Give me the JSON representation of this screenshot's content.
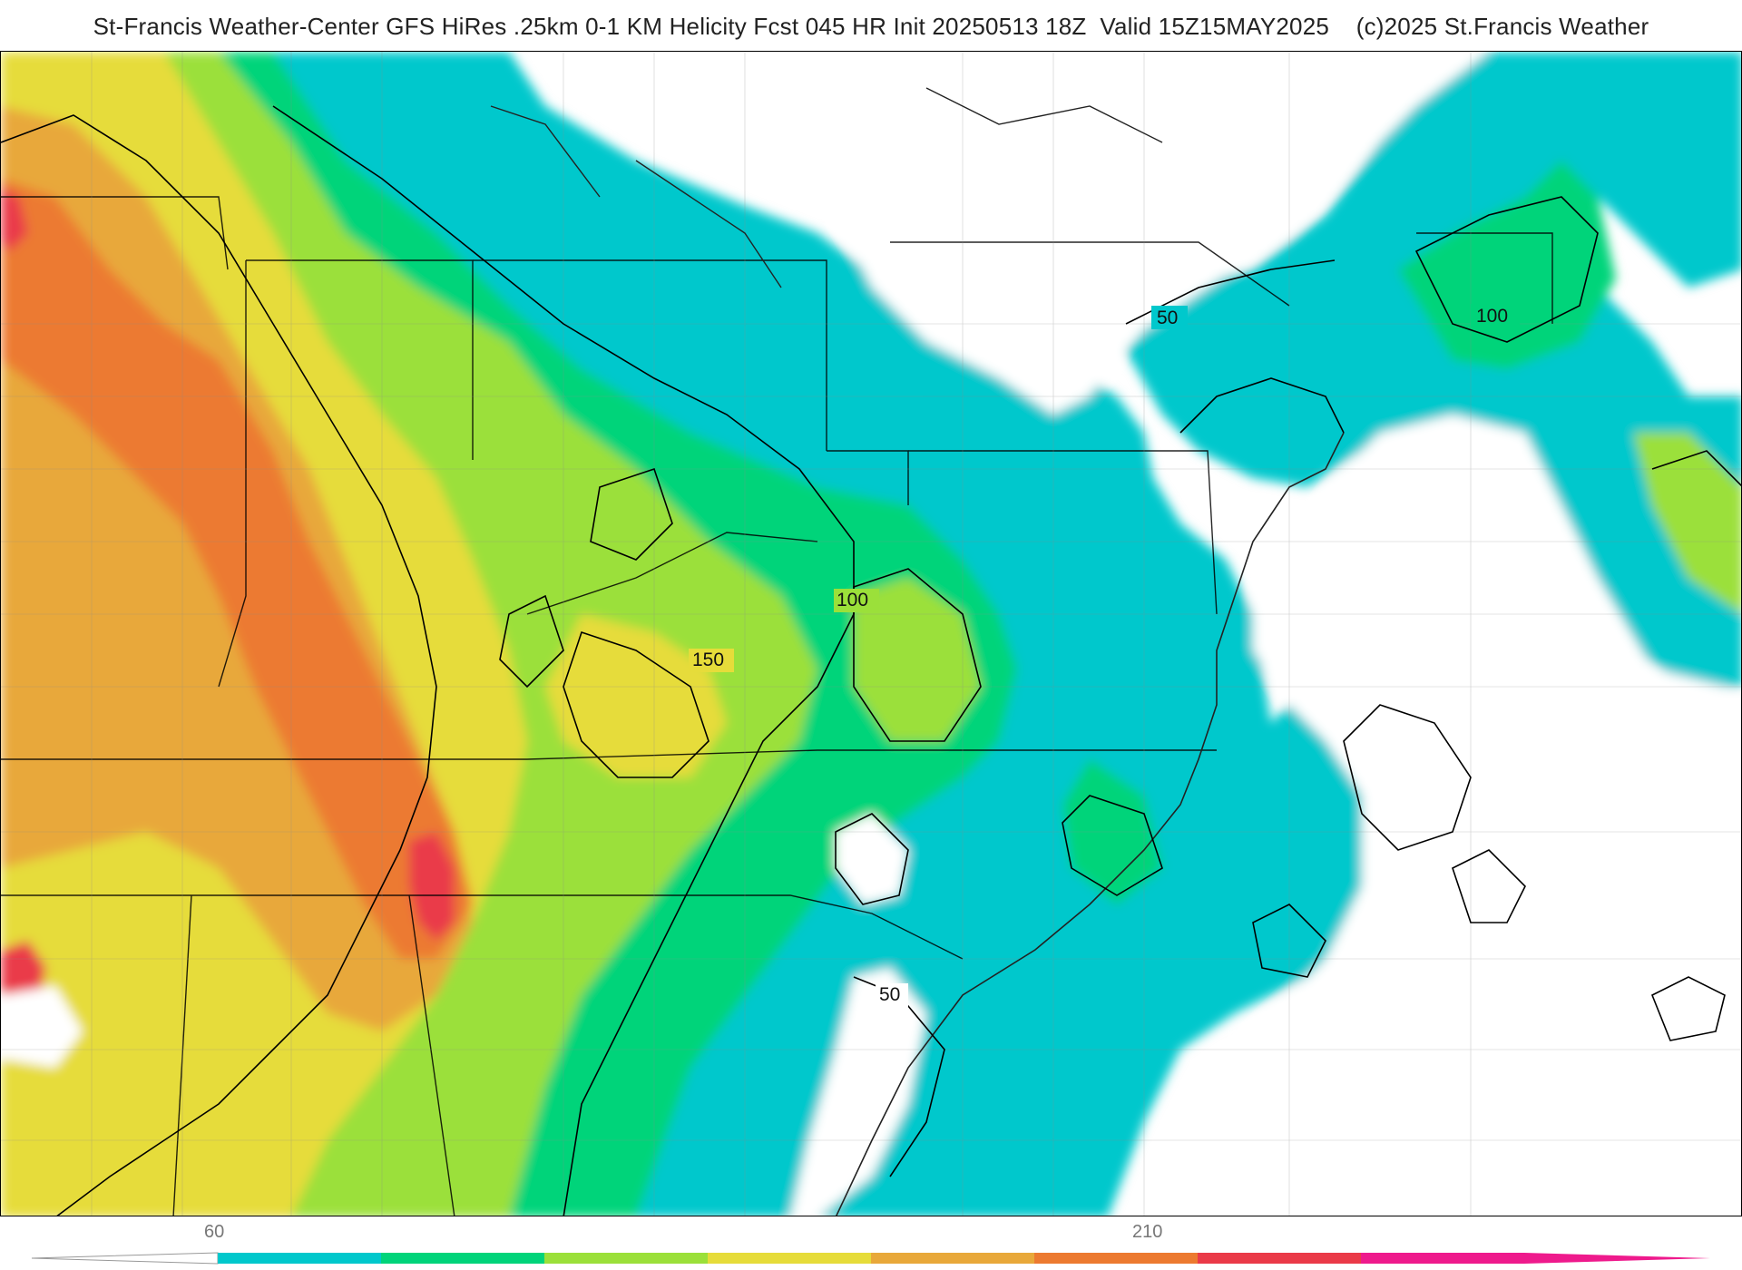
{
  "header": {
    "title": "St-Francis Weather-Center GFS HiRes .25km 0-1 KM Helicity Fcst 045 HR Init 20250513 18Z  Valid 15Z15MAY2025    (c)2025 St.Francis Weather"
  },
  "map": {
    "contour_labels": [
      "50",
      "100",
      "150",
      "100",
      "50"
    ]
  },
  "colorbar": {
    "tick_labels": [
      "60",
      "210"
    ],
    "colors": [
      "#00c8cc",
      "#00d47a",
      "#9be03a",
      "#e6dc3a",
      "#e8a83a",
      "#ec7a30",
      "#ea3a48",
      "#ee1a8c"
    ]
  }
}
